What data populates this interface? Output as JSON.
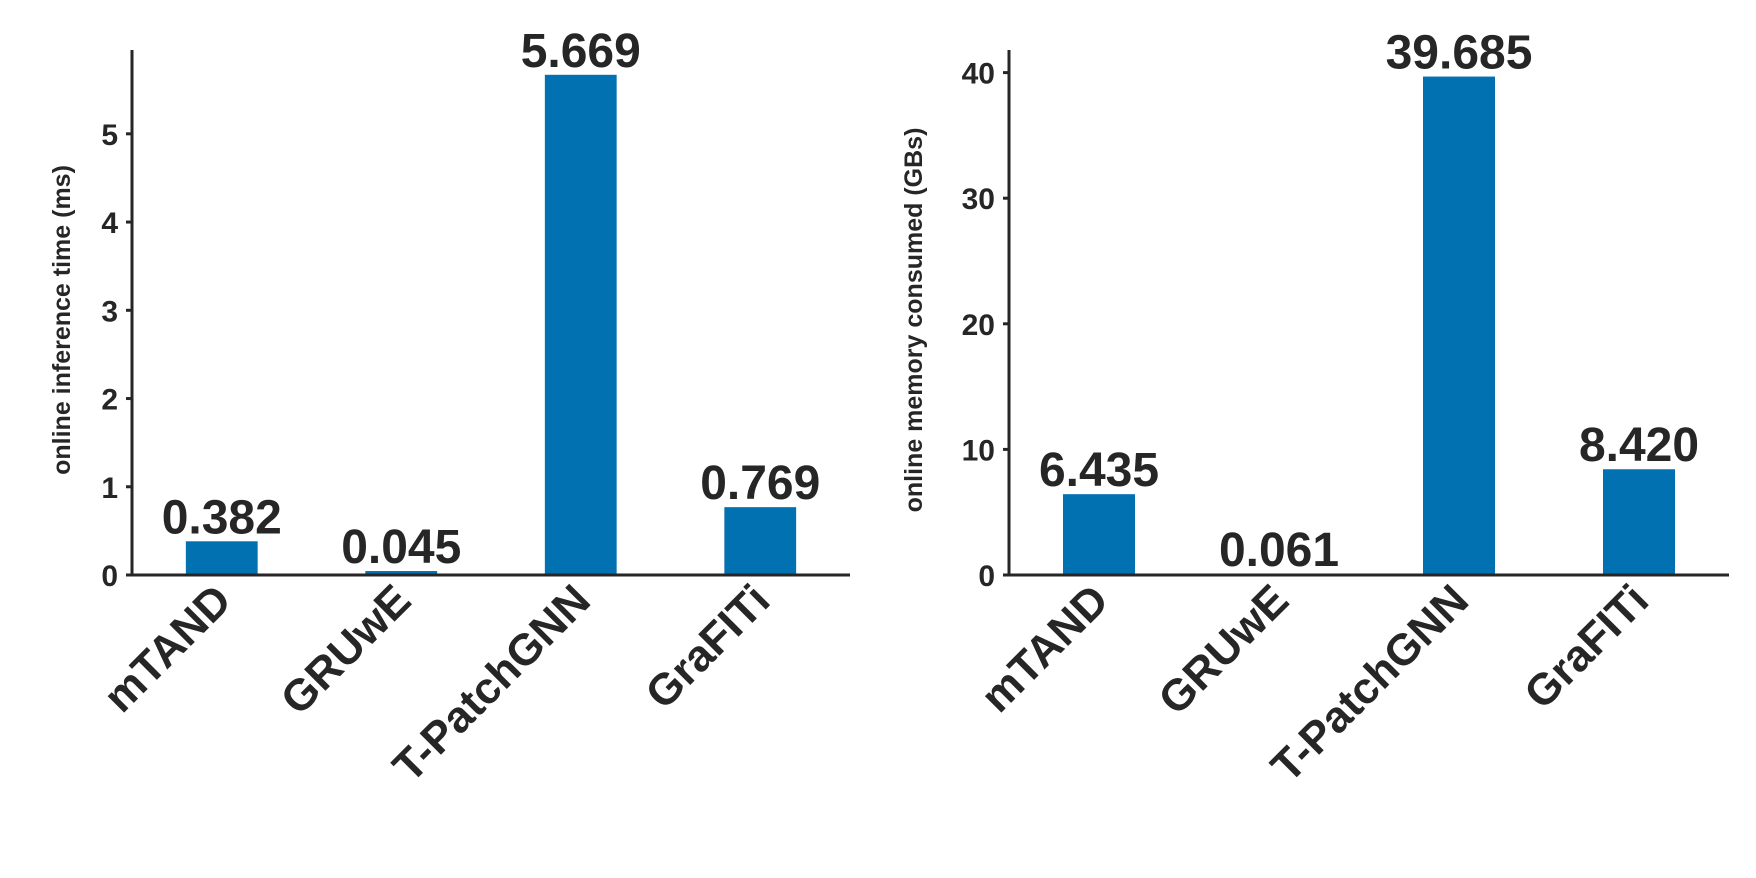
{
  "chart_data": [
    {
      "type": "bar",
      "categories": [
        "mTAND",
        "GRUwE",
        "T-PatchGNN",
        "GraFITi"
      ],
      "values": [
        0.382,
        0.045,
        5.669,
        0.769
      ],
      "value_labels": [
        "0.382",
        "0.045",
        "5.669",
        "0.769"
      ],
      "ylabel": "online inference time (ms)",
      "xlabel": "",
      "ylim": [
        0,
        5.95
      ],
      "yticks": [
        0,
        1,
        2,
        3,
        4,
        5
      ],
      "color": "#0271b2",
      "grid": false
    },
    {
      "type": "bar",
      "categories": [
        "mTAND",
        "GRUwE",
        "T-PatchGNN",
        "GraFITi"
      ],
      "values": [
        6.435,
        0.061,
        39.685,
        8.42
      ],
      "value_labels": [
        "6.435",
        "0.061",
        "39.685",
        "8.420"
      ],
      "ylabel": "online memory consumed (GBs)",
      "xlabel": "",
      "ylim": [
        0,
        41.8
      ],
      "yticks": [
        0,
        10,
        20,
        30,
        40
      ],
      "color": "#0271b2",
      "grid": false
    }
  ]
}
